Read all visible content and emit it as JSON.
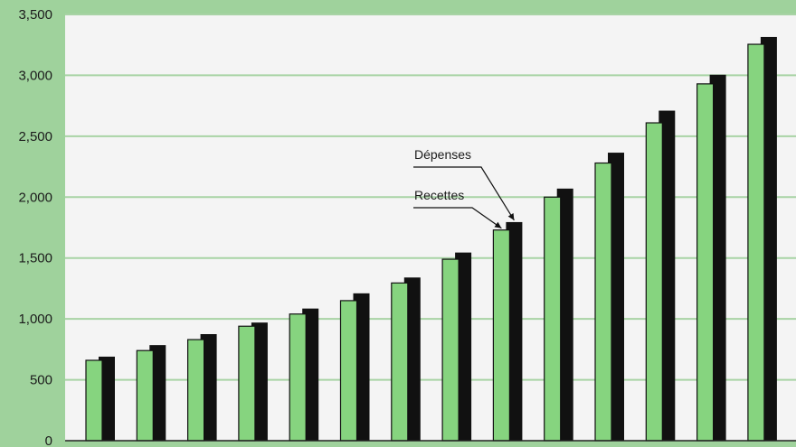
{
  "chart_data": {
    "type": "bar",
    "title": "",
    "xlabel": "",
    "ylabel": "",
    "ylim": [
      0,
      3500
    ],
    "yticks": [
      0,
      500,
      1000,
      1500,
      2000,
      2500,
      3000,
      3500
    ],
    "ytick_labels": [
      "0",
      "500",
      "1,000",
      "1,500",
      "2,000",
      "2,500",
      "3,000",
      "3,500"
    ],
    "grid": true,
    "categories": [
      "",
      "",
      "",
      "",
      "",
      "",
      "",
      "",
      "",
      "",
      "",
      "",
      "",
      ""
    ],
    "series": [
      {
        "name": "Recettes",
        "color": "#86d47f",
        "values": [
          660,
          740,
          830,
          940,
          1040,
          1150,
          1295,
          1490,
          1730,
          2000,
          2280,
          2610,
          2930,
          3255
        ]
      },
      {
        "name": "Dépenses",
        "color": "#111111",
        "values": [
          690,
          785,
          875,
          970,
          1085,
          1210,
          1340,
          1545,
          1795,
          2070,
          2365,
          2710,
          3005,
          3315
        ]
      }
    ],
    "annotations": [
      {
        "text": "Dépenses",
        "series": 1,
        "index": 8
      },
      {
        "text": "Recettes",
        "series": 0,
        "index": 8
      }
    ]
  }
}
